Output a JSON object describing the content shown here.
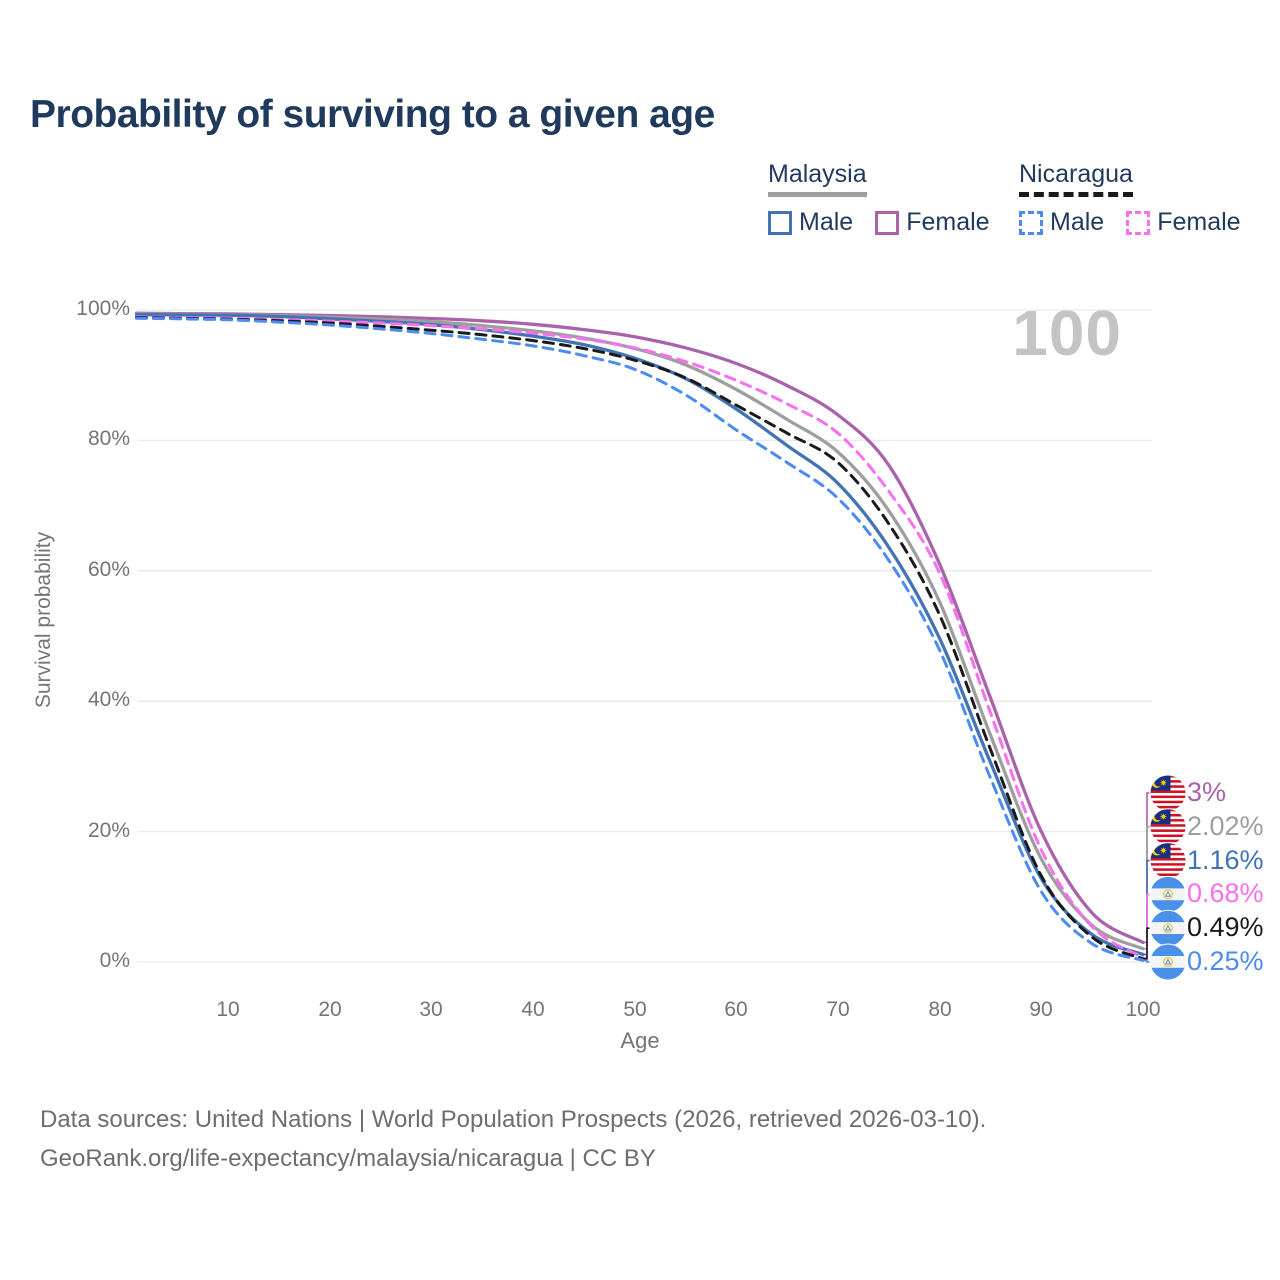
{
  "title": "Probability of surviving to a given age",
  "watermark": "100",
  "legend": {
    "groups": [
      {
        "label": "Malaysia",
        "line_style": "solid",
        "line_color": "#9e9e9e",
        "items": [
          {
            "label": "Male",
            "color": "#4273b4",
            "style": "solid"
          },
          {
            "label": "Female",
            "color": "#aa62ab",
            "style": "solid"
          }
        ]
      },
      {
        "label": "Nicaragua",
        "line_style": "dashed",
        "line_color": "#1a1a1a",
        "items": [
          {
            "label": "Male",
            "color": "#4b8bf2",
            "style": "dashed"
          },
          {
            "label": "Female",
            "color": "#f870ee",
            "style": "dashed"
          }
        ]
      }
    ]
  },
  "chart_data": {
    "type": "line",
    "title": "Probability of surviving to a given age",
    "xlabel": "Age",
    "ylabel": "Survival probability",
    "xlim": [
      1,
      100
    ],
    "ylim": [
      0,
      100
    ],
    "grid": "horizontal",
    "legend_position": "top-right",
    "x_ticks": [
      10,
      20,
      30,
      40,
      50,
      60,
      70,
      80,
      90,
      100
    ],
    "y_ticks": [
      "0%",
      "20%",
      "40%",
      "60%",
      "80%",
      "100%"
    ],
    "y_tick_values": [
      0,
      20,
      40,
      60,
      80,
      100
    ],
    "x": [
      1,
      5,
      10,
      15,
      20,
      25,
      30,
      35,
      40,
      45,
      50,
      55,
      60,
      65,
      70,
      75,
      80,
      85,
      90,
      95,
      100
    ],
    "series": [
      {
        "name": "Malaysia Female",
        "color": "#aa62ab",
        "dash": false,
        "flag": "malaysia-flag-icon",
        "end_label": "3%",
        "values": [
          99.5,
          99.45,
          99.4,
          99.3,
          99.15,
          98.95,
          98.7,
          98.35,
          97.8,
          97.0,
          95.9,
          94.2,
          91.8,
          88.4,
          83.9,
          76.2,
          61.0,
          40.5,
          20.0,
          7.5,
          3.0
        ]
      },
      {
        "name": "Malaysia (both sexes)",
        "color": "#9e9e9e",
        "dash": false,
        "flag": "malaysia-flag-icon",
        "end_label": "2.02%",
        "values": [
          99.4,
          99.35,
          99.3,
          99.15,
          98.9,
          98.6,
          98.2,
          97.6,
          96.8,
          95.7,
          94.1,
          91.6,
          87.8,
          83.2,
          78.2,
          69.2,
          55.2,
          34.8,
          15.8,
          5.6,
          2.02
        ]
      },
      {
        "name": "Malaysia Male",
        "color": "#4273b4",
        "dash": false,
        "flag": "malaysia-flag-icon",
        "end_label": "1.16%",
        "values": [
          99.3,
          99.25,
          99.2,
          99.0,
          98.65,
          98.25,
          97.75,
          97.0,
          96.0,
          94.7,
          92.6,
          89.5,
          84.8,
          79.2,
          73.4,
          63.6,
          49.6,
          30.6,
          12.8,
          4.2,
          1.16
        ]
      },
      {
        "name": "Nicaragua Female",
        "color": "#f870ee",
        "dash": true,
        "flag": "nicaragua-flag-icon",
        "end_label": "0.68%",
        "values": [
          98.95,
          98.85,
          98.75,
          98.55,
          98.3,
          98.0,
          97.6,
          97.1,
          96.45,
          95.55,
          94.2,
          92.1,
          89.2,
          85.6,
          81.1,
          72.2,
          59.6,
          38.2,
          17.2,
          5.4,
          0.68
        ]
      },
      {
        "name": "Nicaragua (both sexes)",
        "color": "#1a1a1a",
        "dash": true,
        "flag": "nicaragua-flag-icon",
        "end_label": "0.49%",
        "values": [
          98.85,
          98.75,
          98.6,
          98.35,
          98.0,
          97.5,
          96.9,
          96.2,
          95.3,
          94.1,
          92.3,
          89.6,
          85.4,
          81.1,
          76.6,
          67.2,
          53.2,
          32.6,
          13.2,
          3.8,
          0.49
        ]
      },
      {
        "name": "Nicaragua Male",
        "color": "#4b8bf2",
        "dash": true,
        "flag": "nicaragua-flag-icon",
        "end_label": "0.25%",
        "values": [
          98.75,
          98.65,
          98.5,
          98.15,
          97.7,
          97.1,
          96.4,
          95.5,
          94.5,
          93.0,
          90.9,
          87.0,
          81.6,
          76.6,
          71.1,
          61.6,
          47.8,
          28.2,
          10.8,
          2.8,
          0.25
        ]
      }
    ]
  },
  "footer": {
    "line1": "Data sources: United Nations | World Population Prospects (2026, retrieved 2026-03-10).",
    "line2": "GeoRank.org/life-expectancy/malaysia/nicaragua | CC BY"
  }
}
